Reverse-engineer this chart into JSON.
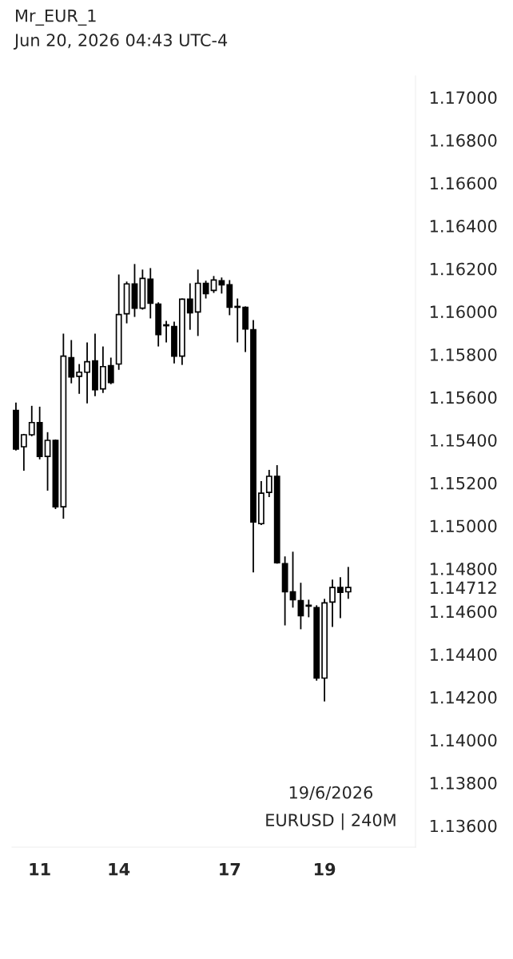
{
  "chart_data": {
    "type": "candlestick",
    "title": "Mr_EUR_1",
    "subtitle": "Jun 20, 2026 04:43 UTC-4",
    "annotations": [
      "19/6/2026",
      "EURUSD | 240M"
    ],
    "color": "#000000",
    "categories": [
      null,
      null,
      null,
      "11",
      null,
      null,
      null,
      null,
      null,
      null,
      null,
      null,
      null,
      "14",
      null,
      null,
      null,
      null,
      null,
      null,
      null,
      null,
      null,
      null,
      null,
      null,
      null,
      "17",
      null,
      null,
      null,
      null,
      null,
      null,
      null,
      null,
      null,
      null,
      null,
      "19",
      null,
      null,
      null
    ],
    "ohlc": [
      [
        1.15538,
        1.15575,
        1.15351,
        1.15358
      ],
      [
        1.15369,
        1.15429,
        1.15257,
        1.15425
      ],
      [
        1.15425,
        1.1556,
        1.15418,
        1.15482
      ],
      [
        1.15482,
        1.15556,
        1.1531,
        1.15324
      ],
      [
        1.15324,
        1.15437,
        1.15164,
        1.15399
      ],
      [
        1.15399,
        1.15403,
        1.15078,
        1.15089
      ],
      [
        1.15089,
        1.15897,
        1.15033,
        1.15792
      ],
      [
        1.15785,
        1.15867,
        1.15665,
        1.15695
      ],
      [
        1.15698,
        1.15755,
        1.15616,
        1.15717
      ],
      [
        1.15717,
        1.15856,
        1.15571,
        1.15766
      ],
      [
        1.1577,
        1.15897,
        1.15605,
        1.15635
      ],
      [
        1.15639,
        1.15837,
        1.1562,
        1.15743
      ],
      [
        1.15747,
        1.15785,
        1.15661,
        1.15669
      ],
      [
        1.15755,
        1.16173,
        1.15728,
        1.15986
      ],
      [
        1.1599,
        1.1614,
        1.15945,
        1.16129
      ],
      [
        1.16129,
        1.16222,
        1.15975,
        1.16016
      ],
      [
        1.16016,
        1.16196,
        1.16009,
        1.16155
      ],
      [
        1.16151,
        1.16203,
        1.15968,
        1.16039
      ],
      [
        1.16035,
        1.16043,
        1.15837,
        1.15893
      ],
      [
        1.15938,
        1.15957,
        1.15856,
        1.15934
      ],
      [
        1.1593,
        1.15953,
        1.15758,
        1.15792
      ],
      [
        1.15792,
        1.16061,
        1.15751,
        1.16058
      ],
      [
        1.16058,
        1.16132,
        1.15915,
        1.15994
      ],
      [
        1.15998,
        1.16196,
        1.15886,
        1.16132
      ],
      [
        1.16132,
        1.16144,
        1.16061,
        1.16084
      ],
      [
        1.16099,
        1.16166,
        1.16087,
        1.16147
      ],
      [
        1.16144,
        1.16159,
        1.16084,
        1.16125
      ],
      [
        1.16125,
        1.16147,
        1.15983,
        1.1602
      ],
      [
        1.16024,
        1.16061,
        1.15856,
        1.1602
      ],
      [
        1.1602,
        1.16024,
        1.15811,
        1.15919
      ],
      [
        1.15915,
        1.1596,
        1.14782,
        1.15018
      ],
      [
        1.1501,
        1.15209,
        1.15003,
        1.15152
      ],
      [
        1.15156,
        1.15261,
        1.15134,
        1.15231
      ],
      [
        1.15231,
        1.15283,
        1.14823,
        1.14827
      ],
      [
        1.14823,
        1.14857,
        1.14535,
        1.14692
      ],
      [
        1.14692,
        1.14879,
        1.14618,
        1.14655
      ],
      [
        1.14651,
        1.14734,
        1.14517,
        1.1458
      ],
      [
        1.14629,
        1.14655,
        1.14573,
        1.14625
      ],
      [
        1.14618,
        1.14629,
        1.14277,
        1.14289
      ],
      [
        1.14289,
        1.14659,
        1.1418,
        1.1464
      ],
      [
        1.14644,
        1.14749,
        1.14528,
        1.14712
      ],
      [
        1.14712,
        1.1476,
        1.14569,
        1.14689
      ],
      [
        1.14692,
        1.14808,
        1.14659,
        1.14712
      ]
    ],
    "ylim": [
      1.135,
      1.171
    ],
    "yticks": [
      {
        "value": 1.17,
        "label": "1.17000"
      },
      {
        "value": 1.168,
        "label": "1.16800"
      },
      {
        "value": 1.166,
        "label": "1.16600"
      },
      {
        "value": 1.164,
        "label": "1.16400"
      },
      {
        "value": 1.162,
        "label": "1.16200"
      },
      {
        "value": 1.16,
        "label": "1.16000"
      },
      {
        "value": 1.158,
        "label": "1.15800"
      },
      {
        "value": 1.156,
        "label": "1.15600"
      },
      {
        "value": 1.154,
        "label": "1.15400"
      },
      {
        "value": 1.152,
        "label": "1.15200"
      },
      {
        "value": 1.15,
        "label": "1.15000"
      },
      {
        "value": 1.148,
        "label": "1.14800"
      },
      {
        "value": 1.14712,
        "label": "1.14712"
      },
      {
        "value": 1.146,
        "label": "1.14600"
      },
      {
        "value": 1.144,
        "label": "1.14400"
      },
      {
        "value": 1.142,
        "label": "1.14200"
      },
      {
        "value": 1.14,
        "label": "1.14000"
      },
      {
        "value": 1.138,
        "label": "1.13800"
      },
      {
        "value": 1.136,
        "label": "1.13600"
      }
    ],
    "grid": false
  }
}
